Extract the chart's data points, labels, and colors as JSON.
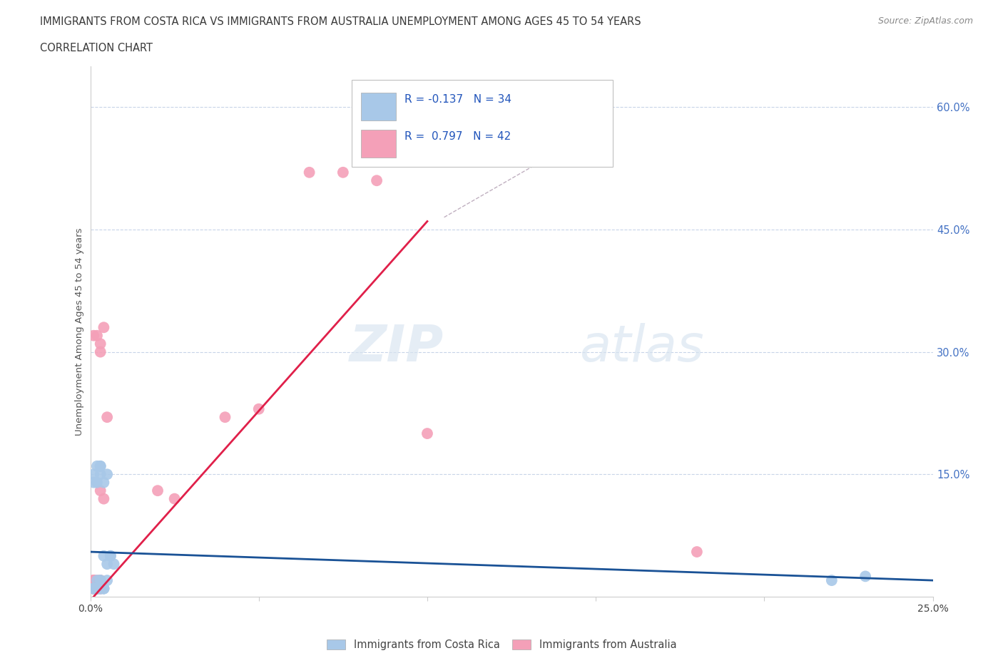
{
  "title_line1": "IMMIGRANTS FROM COSTA RICA VS IMMIGRANTS FROM AUSTRALIA UNEMPLOYMENT AMONG AGES 45 TO 54 YEARS",
  "title_line2": "CORRELATION CHART",
  "source": "Source: ZipAtlas.com",
  "ylabel": "Unemployment Among Ages 45 to 54 years",
  "xlim": [
    0.0,
    0.25
  ],
  "ylim": [
    0.0,
    0.65
  ],
  "xticks": [
    0.0,
    0.05,
    0.1,
    0.15,
    0.2,
    0.25
  ],
  "yticks": [
    0.0,
    0.15,
    0.3,
    0.45,
    0.6
  ],
  "ytick_labels": [
    "",
    "15.0%",
    "30.0%",
    "45.0%",
    "60.0%"
  ],
  "xtick_labels": [
    "0.0%",
    "",
    "",
    "",
    "",
    "25.0%"
  ],
  "costa_rica_R": -0.137,
  "costa_rica_N": 34,
  "australia_R": 0.797,
  "australia_N": 42,
  "watermark_zip": "ZIP",
  "watermark_atlas": "atlas",
  "legend_costa_rica": "Immigrants from Costa Rica",
  "legend_australia": "Immigrants from Australia",
  "costa_rica_color": "#a8c8e8",
  "australia_color": "#f4a0b8",
  "costa_rica_line_color": "#1a5296",
  "australia_line_color": "#e0204a",
  "background_color": "#ffffff",
  "grid_color": "#c8d4e8",
  "costa_rica_scatter_x": [
    0.001,
    0.002,
    0.001,
    0.003,
    0.002,
    0.004,
    0.003,
    0.005,
    0.002,
    0.001,
    0.003,
    0.002,
    0.004,
    0.003,
    0.001,
    0.002,
    0.003,
    0.004,
    0.002,
    0.001,
    0.003,
    0.004,
    0.002,
    0.003,
    0.001,
    0.005,
    0.003,
    0.005,
    0.004,
    0.006,
    0.007,
    0.006,
    0.22,
    0.23
  ],
  "costa_rica_scatter_y": [
    0.01,
    0.02,
    0.01,
    0.02,
    0.01,
    0.01,
    0.02,
    0.02,
    0.01,
    0.01,
    0.01,
    0.01,
    0.01,
    0.01,
    0.01,
    0.01,
    0.01,
    0.01,
    0.14,
    0.15,
    0.16,
    0.14,
    0.16,
    0.15,
    0.14,
    0.15,
    0.16,
    0.04,
    0.05,
    0.05,
    0.04,
    0.05,
    0.02,
    0.025
  ],
  "australia_scatter_x": [
    0.001,
    0.002,
    0.001,
    0.002,
    0.003,
    0.001,
    0.002,
    0.001,
    0.002,
    0.003,
    0.001,
    0.002,
    0.001,
    0.003,
    0.002,
    0.001,
    0.002,
    0.003,
    0.001,
    0.002,
    0.001,
    0.002,
    0.003,
    0.001,
    0.002,
    0.003,
    0.001,
    0.002,
    0.003,
    0.004,
    0.003,
    0.004,
    0.005,
    0.02,
    0.025,
    0.04,
    0.05,
    0.065,
    0.075,
    0.085,
    0.1,
    0.18
  ],
  "australia_scatter_y": [
    0.01,
    0.02,
    0.01,
    0.01,
    0.02,
    0.01,
    0.01,
    0.02,
    0.01,
    0.01,
    0.02,
    0.01,
    0.01,
    0.02,
    0.01,
    0.02,
    0.01,
    0.02,
    0.01,
    0.01,
    0.02,
    0.01,
    0.01,
    0.02,
    0.01,
    0.31,
    0.32,
    0.32,
    0.3,
    0.33,
    0.13,
    0.12,
    0.22,
    0.13,
    0.12,
    0.22,
    0.23,
    0.52,
    0.52,
    0.51,
    0.2,
    0.055
  ],
  "au_trendline_x": [
    0.001,
    0.1
  ],
  "au_trendline_y": [
    0.0,
    0.46
  ],
  "cr_trendline_x": [
    0.0,
    0.25
  ],
  "cr_trendline_y": [
    0.055,
    0.02
  ],
  "dash_line_x": [
    0.105,
    0.145
  ],
  "dash_line_y": [
    0.465,
    0.56
  ]
}
